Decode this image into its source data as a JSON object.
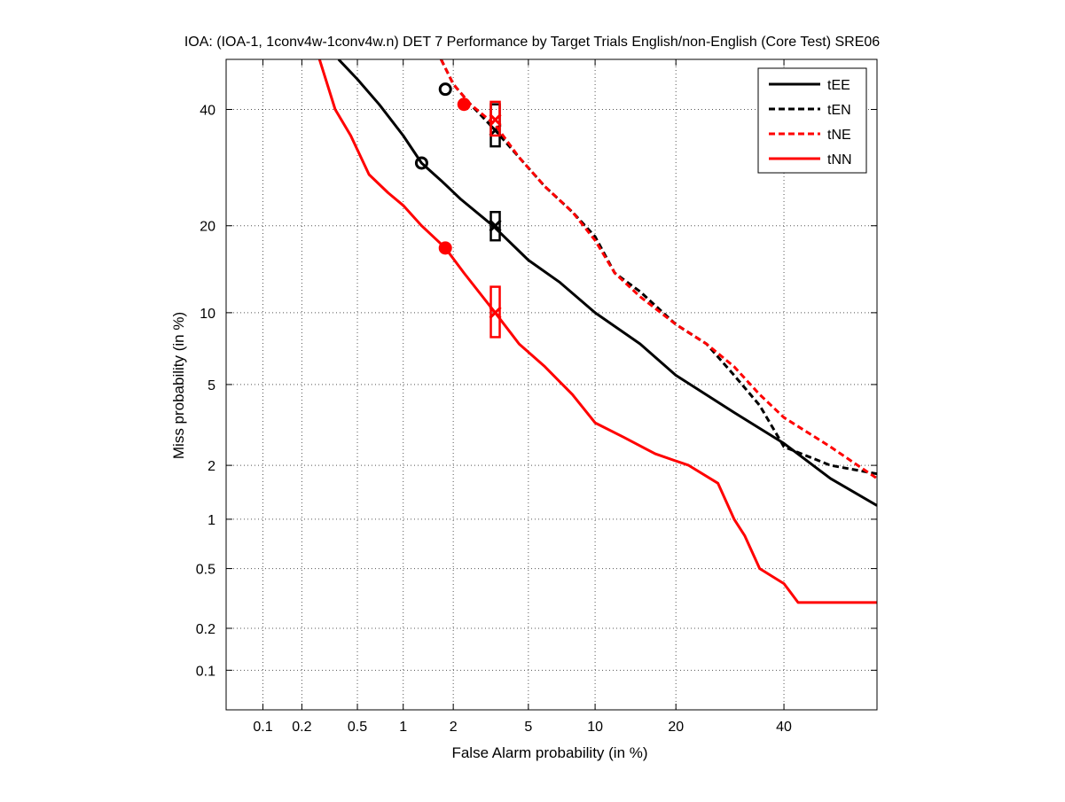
{
  "chart_data": {
    "type": "line",
    "title": "IOA: (IOA-1, 1conv4w-1conv4w.n) DET 7 Performance by Target Trials English/non-English (Core Test) SRE06",
    "xlabel": "False Alarm probability (in %)",
    "ylabel": "Miss probability (in %)",
    "xscale": "probit",
    "yscale": "probit",
    "xlim": [
      0.05,
      60
    ],
    "ylim": [
      0.05,
      50
    ],
    "xticks": [
      0.1,
      0.2,
      0.5,
      1,
      2,
      5,
      10,
      20,
      40
    ],
    "xtick_labels": [
      "0.1",
      "0.2",
      "0.5",
      "1",
      "2",
      "5",
      "10",
      "20",
      "40"
    ],
    "yticks": [
      0.1,
      0.2,
      0.5,
      1,
      2,
      5,
      10,
      20,
      40
    ],
    "ytick_labels": [
      "0.1",
      "0.2",
      "0.5",
      "1",
      "2",
      "5",
      "10",
      "20",
      "40"
    ],
    "grid": true,
    "legend_position": "top-right",
    "series": [
      {
        "name": "tEE",
        "color": "#000000",
        "dash": "solid",
        "x": [
          0.37,
          0.5,
          0.7,
          1.0,
          1.3,
          1.7,
          2.2,
          3.3,
          5.0,
          7.0,
          10,
          15,
          20,
          30,
          40,
          50,
          60
        ],
        "y": [
          50,
          46,
          41,
          35,
          30,
          27,
          24,
          20,
          15.5,
          13,
          10,
          7.5,
          5.5,
          3.7,
          2.6,
          1.7,
          1.2
        ],
        "min_dcf_point": {
          "x": 1.3,
          "y": 30
        },
        "eer_point": {
          "x": 3.4,
          "y": 20
        },
        "eer_interval": [
          18,
          22
        ]
      },
      {
        "name": "tEN",
        "color": "#000000",
        "dash": "dashed",
        "x": [
          1.7,
          2.0,
          2.5,
          3.4,
          4.5,
          6.0,
          8.0,
          10,
          12,
          15,
          20,
          25,
          30,
          35,
          40,
          50,
          60
        ],
        "y": [
          50,
          45,
          41,
          36,
          31,
          26,
          22,
          18.5,
          14,
          12,
          9,
          7.5,
          5.5,
          4.0,
          2.5,
          2.0,
          1.8
        ],
        "min_dcf_point": {
          "x": 1.8,
          "y": 44
        },
        "eer_point": {
          "x": 3.4,
          "y": 36
        },
        "eer_interval": [
          33,
          41
        ]
      },
      {
        "name": "tNE",
        "color": "#ff0000",
        "dash": "dashed",
        "x": [
          1.7,
          2.0,
          2.5,
          3.4,
          4.5,
          6.0,
          8.0,
          10,
          12,
          15,
          20,
          25,
          30,
          35,
          40,
          50,
          60
        ],
        "y": [
          50,
          45,
          41,
          37,
          31,
          26,
          22,
          18,
          14,
          11.5,
          9,
          7.5,
          6,
          4.5,
          3.5,
          2.5,
          1.7
        ],
        "min_dcf_point": {
          "x": 2.3,
          "y": 41
        },
        "eer_point": {
          "x": 3.4,
          "y": 38
        },
        "eer_interval": [
          35,
          41.5
        ]
      },
      {
        "name": "tNN",
        "color": "#ff0000",
        "dash": "solid",
        "x": [
          0.27,
          0.35,
          0.45,
          0.6,
          0.8,
          1.0,
          1.3,
          1.8,
          2.3,
          3.4,
          4.5,
          6.0,
          8.0,
          10,
          13,
          17,
          22,
          27,
          30,
          32,
          35,
          40,
          43,
          60
        ],
        "y": [
          50,
          40,
          35,
          28,
          25,
          23,
          20,
          17,
          14,
          10,
          7.5,
          6,
          4.5,
          3.3,
          2.8,
          2.3,
          2.0,
          1.6,
          1.0,
          0.8,
          0.5,
          0.4,
          0.3,
          0.3
        ],
        "min_dcf_point": {
          "x": 1.8,
          "y": 17
        },
        "eer_point": {
          "x": 3.4,
          "y": 10
        },
        "eer_interval": [
          8,
          12.5
        ]
      }
    ]
  }
}
